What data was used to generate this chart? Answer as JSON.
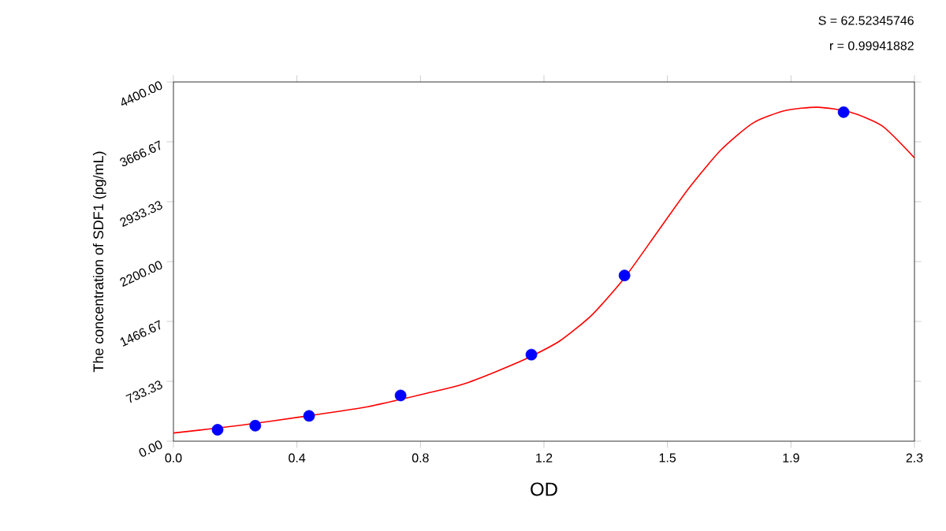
{
  "chart_data": {
    "type": "scatter",
    "xlabel": "OD",
    "ylabel": "The concentration of SDF1 (pg/mL)",
    "annotations": [
      "S = 62.52345746",
      "r = 0.99941882"
    ],
    "xlim": [
      0,
      2.3
    ],
    "ylim": [
      0,
      4400
    ],
    "xticks": [
      {
        "value": 0,
        "label": "0.0"
      },
      {
        "value": 0.3833,
        "label": "0.4"
      },
      {
        "value": 0.7667,
        "label": "0.8"
      },
      {
        "value": 1.15,
        "label": "1.2"
      },
      {
        "value": 1.5333,
        "label": "1.5"
      },
      {
        "value": 1.9167,
        "label": "1.9"
      },
      {
        "value": 2.3,
        "label": "2.3"
      }
    ],
    "yticks": [
      {
        "value": 0,
        "label": "0.00"
      },
      {
        "value": 733.33,
        "label": "733.33"
      },
      {
        "value": 1466.67,
        "label": "1466.67"
      },
      {
        "value": 2200,
        "label": "2200.00"
      },
      {
        "value": 2933.33,
        "label": "2933.33"
      },
      {
        "value": 3666.67,
        "label": "3666.67"
      },
      {
        "value": 4400,
        "label": "4400.00"
      }
    ],
    "grid": false,
    "series": [
      {
        "type": "line",
        "color": "#ff0000",
        "line_style": "solid",
        "marker": "none",
        "x": [
          0,
          0.2,
          0.4,
          0.6,
          0.8,
          0.9,
          1.0,
          1.1,
          1.2,
          1.3,
          1.4,
          1.5,
          1.6,
          1.7,
          1.8,
          1.9,
          2.0,
          2.1,
          2.2,
          2.3
        ],
        "values": [
          100,
          190,
          300,
          420,
          600,
          700,
          850,
          1020,
          1230,
          1550,
          2000,
          2550,
          3100,
          3570,
          3900,
          4050,
          4090,
          4030,
          3860,
          3470
        ]
      },
      {
        "color": "#0000ff",
        "marker": "circle",
        "x": [
          0.137,
          0.254,
          0.421,
          0.705,
          1.111,
          1.4,
          2.08
        ],
        "values": [
          140,
          190,
          310,
          560,
          1060,
          2030,
          4030
        ]
      }
    ]
  }
}
